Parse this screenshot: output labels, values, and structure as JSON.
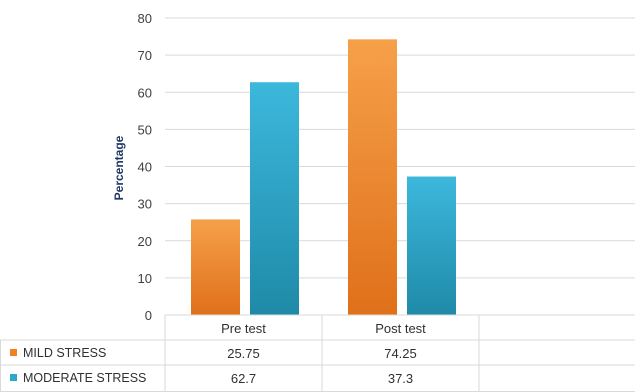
{
  "chart_data": {
    "type": "bar",
    "title": "",
    "xlabel": "",
    "ylabel": "Percentage",
    "ylim": [
      0,
      80
    ],
    "yticks": [
      0,
      10,
      20,
      30,
      40,
      50,
      60,
      70,
      80
    ],
    "categories": [
      "Pre test",
      "Post test"
    ],
    "series": [
      {
        "name": "MILD STRESS",
        "values": [
          25.75,
          74.25
        ],
        "value_labels": [
          "25.75",
          "74.25"
        ],
        "color": "#f0821e"
      },
      {
        "name": "MODERATE STRESS",
        "values": [
          62.7,
          37.3
        ],
        "value_labels": [
          "62.7",
          "37.3"
        ],
        "color": "#2fa7c9"
      }
    ],
    "grid": true,
    "legend": "data-table-left",
    "data_table": true
  }
}
